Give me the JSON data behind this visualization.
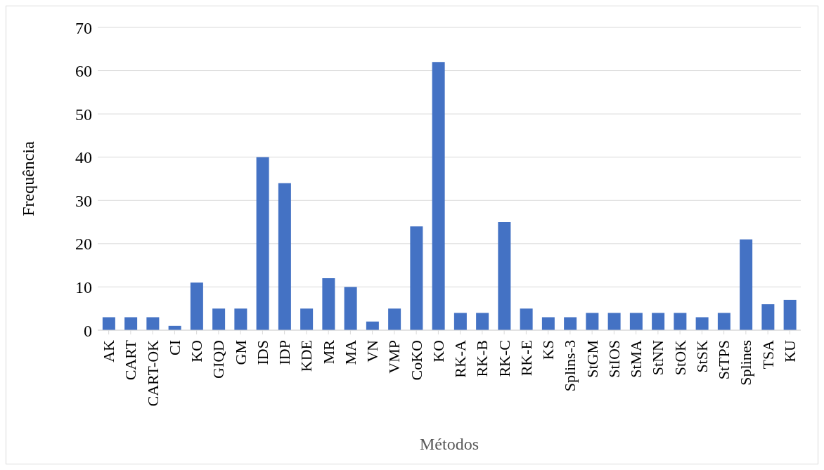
{
  "chart_data": {
    "type": "bar",
    "xlabel": "Métodos",
    "ylabel": "Frequência",
    "categories": [
      "AK",
      "CART",
      "CART-OK",
      "CI",
      "KO",
      "GIQD",
      "GM",
      "IDS",
      "IDP",
      "KDE",
      "MR",
      "MA",
      "VN",
      "VMP",
      "CoKO",
      "KO",
      "RK-A",
      "RK-B",
      "RK-C",
      "RK-E",
      "KS",
      "Splins-3",
      "StGM",
      "StIOS",
      "StMA",
      "StNN",
      "StOK",
      "StSK",
      "StTPS",
      "Splines",
      "TSA",
      "KU"
    ],
    "values": [
      3,
      3,
      3,
      1,
      11,
      5,
      5,
      40,
      34,
      5,
      12,
      10,
      2,
      5,
      24,
      62,
      4,
      4,
      25,
      5,
      3,
      3,
      4,
      4,
      4,
      4,
      4,
      3,
      4,
      21,
      6,
      7
    ],
    "color": "#4472c4",
    "ylim": [
      0,
      70
    ],
    "yticks": [
      0,
      10,
      20,
      30,
      40,
      50,
      60,
      70
    ],
    "grid": "y"
  }
}
